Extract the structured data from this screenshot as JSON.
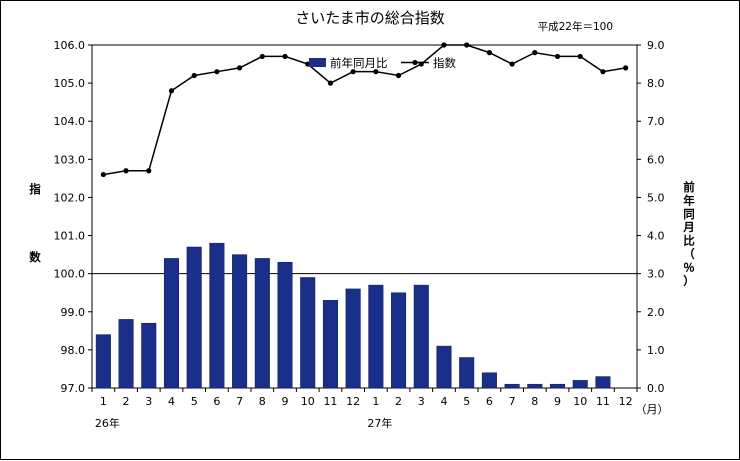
{
  "chart_data": {
    "type": "bar+line",
    "title": "さいたま市の総合指数",
    "base_note": "平成22年＝100",
    "categories": [
      "1",
      "2",
      "3",
      "4",
      "5",
      "6",
      "7",
      "8",
      "9",
      "10",
      "11",
      "12",
      "1",
      "2",
      "3",
      "4",
      "5",
      "6",
      "7",
      "8",
      "9",
      "10",
      "11",
      "12"
    ],
    "month_unit": "（月）",
    "year_labels": [
      {
        "label": "26年",
        "category_index": 0
      },
      {
        "label": "27年",
        "category_index": 12
      }
    ],
    "left_axis": {
      "label_chars": [
        "指",
        "数"
      ],
      "ylim": [
        97.0,
        106.0
      ],
      "ticks": [
        "97.0",
        "98.0",
        "99.0",
        "100.0",
        "101.0",
        "102.0",
        "103.0",
        "104.0",
        "105.0",
        "106.0"
      ]
    },
    "right_axis": {
      "label_chars": [
        "前",
        "年",
        "同",
        "月",
        "比",
        "（",
        "％",
        "）"
      ],
      "ylim": [
        0.0,
        9.0
      ],
      "ticks": [
        "0.0",
        "1.0",
        "2.0",
        "3.0",
        "4.0",
        "5.0",
        "6.0",
        "7.0",
        "8.0",
        "9.0"
      ]
    },
    "reference_line": {
      "value": 100.0,
      "axis": "left"
    },
    "series": [
      {
        "name": "前年同月比",
        "kind": "bar",
        "axis": "right",
        "color": "#1a2f8a",
        "values": [
          1.4,
          1.8,
          1.7,
          3.4,
          3.7,
          3.8,
          3.5,
          3.4,
          3.3,
          2.9,
          2.3,
          2.6,
          2.7,
          2.5,
          2.7,
          1.1,
          0.8,
          0.4,
          0.1,
          0.1,
          0.1,
          0.2,
          0.3,
          0.0
        ]
      },
      {
        "name": "指数",
        "kind": "line",
        "axis": "left",
        "color": "#000000",
        "values": [
          102.6,
          102.7,
          102.7,
          104.8,
          105.2,
          105.3,
          105.4,
          105.7,
          105.7,
          105.5,
          105.0,
          105.3,
          105.3,
          105.2,
          105.5,
          106.0,
          106.0,
          105.8,
          105.5,
          105.8,
          105.7,
          105.7,
          105.3,
          105.4
        ]
      }
    ],
    "legend_position": "top-center",
    "grid": false
  }
}
